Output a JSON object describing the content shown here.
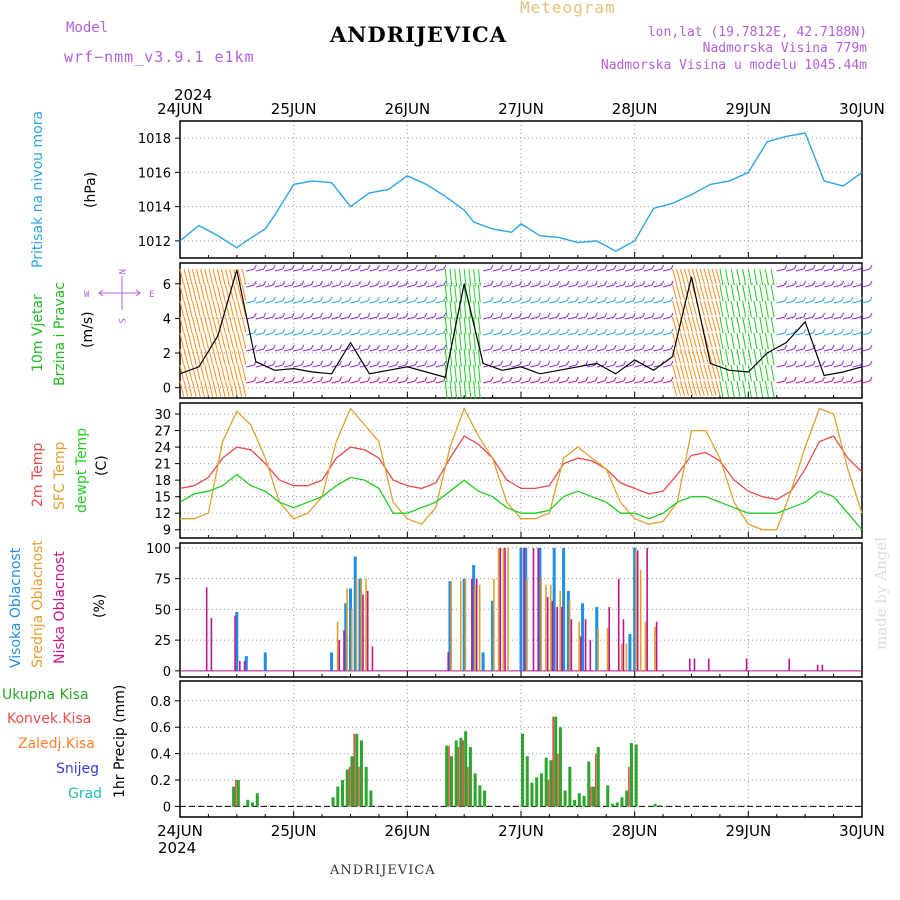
{
  "header": {
    "station": "ANDRIJEVICA",
    "product": "Meteogram",
    "model_label": "Model",
    "model_name": "wrf−nmm_v3.9.1  e1km",
    "lonlat": "lon,lat (19.7812E, 42.7188N)",
    "elevation": "Nadmorska Visina 779m",
    "elevation_model": "Nadmorska Visina u modelu 1045.44m"
  },
  "footer": {
    "station": "ANDRIJEVICA",
    "watermark": "made by Angel"
  },
  "time_axis": {
    "year": "2024",
    "labels": [
      "24JUN",
      "25JUN",
      "26JUN",
      "27JUN",
      "28JUN",
      "29JUN",
      "30JUN"
    ]
  },
  "colors": {
    "pressure": "#2aa5e6",
    "wind_label": "#22bb22",
    "temp2m": "#e84c4c",
    "sfc": "#e0a030",
    "dewpt": "#22cc22",
    "high_cloud": "#1e8fe6",
    "mid_cloud": "#e0a030",
    "low_cloud": "#c0158a",
    "total_precip": "#2aa72a",
    "conv_precip": "#e84c4c",
    "frozen_precip": "#ff7f2a",
    "snow": "#3a3ad8",
    "hail": "#22bbbb",
    "purple_text": "#b25fd8"
  },
  "panels": {
    "pressure": {
      "label": "Pritisak na nivou mora",
      "unit": "(hPa)"
    },
    "wind": {
      "label1": "10m Vjetar",
      "label2": "Brzina i Pravac",
      "unit": "(m/s)",
      "compass": {
        "n": "N",
        "w": "W",
        "e": "E",
        "s": "S"
      }
    },
    "temp": {
      "label_2m": "2m Temp",
      "label_sfc": "SFC Temp",
      "label_dewpt": "dewpt Temp",
      "unit": "(C)"
    },
    "cloud": {
      "label_high": "Visoka Oblacnost",
      "label_mid": "Srednja Oblacnost",
      "label_low": "Niska Oblacnost",
      "unit": "(%)"
    },
    "precip": {
      "unit": "1hr Precip (mm)",
      "legend": [
        "Ukupna Kisa",
        "Konvek.Kisa",
        "Zaledj.Kisa",
        "Snijeg",
        "Grad"
      ]
    }
  },
  "chart_data": [
    {
      "type": "line",
      "title": "",
      "ylabel": "Pritisak na nivou mora (hPa)",
      "ylim": [
        1011,
        1019
      ],
      "yticks": [
        1012,
        1014,
        1016,
        1018
      ],
      "x_unit": "hours since 24JUN 00",
      "series": [
        {
          "name": "Pritisak na nivou mora",
          "color_key": "pressure",
          "x": [
            0,
            4,
            8,
            12,
            14,
            18,
            20,
            24,
            28,
            32,
            36,
            40,
            44,
            48,
            52,
            56,
            60,
            62,
            66,
            70,
            72,
            76,
            80,
            84,
            88,
            92,
            96,
            100,
            104,
            108,
            112,
            116,
            120,
            124,
            128,
            132,
            136,
            140,
            144
          ],
          "y": [
            1012.0,
            1012.9,
            1012.3,
            1011.6,
            1012.0,
            1012.7,
            1013.5,
            1015.3,
            1015.5,
            1015.4,
            1014.0,
            1014.8,
            1015.0,
            1015.8,
            1015.3,
            1014.6,
            1013.8,
            1013.1,
            1012.7,
            1012.5,
            1013.0,
            1012.3,
            1012.2,
            1011.9,
            1012.0,
            1011.4,
            1012.0,
            1013.9,
            1014.2,
            1014.7,
            1015.3,
            1015.5,
            1016.0,
            1017.8,
            1018.1,
            1018.3,
            1015.5,
            1015.2,
            1016.0
          ]
        }
      ]
    },
    {
      "type": "line",
      "title": "",
      "ylabel": "10m Vjetar Brzina i Pravac (m/s)",
      "ylim": [
        -0.6,
        7.2
      ],
      "yticks": [
        0,
        2,
        4,
        6
      ],
      "x_unit": "hours since 24JUN 00",
      "series": [
        {
          "name": "Brzina",
          "x": [
            0,
            4,
            8,
            12,
            16,
            20,
            24,
            28,
            32,
            36,
            40,
            44,
            48,
            52,
            56,
            60,
            64,
            68,
            72,
            76,
            80,
            84,
            88,
            92,
            96,
            100,
            104,
            108,
            112,
            116,
            120,
            124,
            128,
            132,
            136,
            140,
            144
          ],
          "y": [
            0.8,
            1.2,
            3.0,
            6.8,
            1.5,
            1.0,
            1.1,
            0.9,
            0.8,
            2.6,
            0.8,
            1.0,
            1.2,
            0.9,
            0.6,
            6.0,
            1.4,
            1.0,
            1.2,
            0.8,
            1.0,
            1.2,
            1.4,
            0.8,
            1.6,
            1.0,
            1.8,
            6.4,
            1.4,
            1.0,
            0.9,
            2.0,
            2.6,
            3.8,
            0.7,
            0.9,
            1.2
          ]
        }
      ]
    },
    {
      "type": "line",
      "title": "",
      "ylabel": "Temp (C)",
      "ylim": [
        7.5,
        32
      ],
      "yticks": [
        9,
        12,
        15,
        18,
        21,
        24,
        27,
        30
      ],
      "x_unit": "hours since 24JUN 00",
      "series": [
        {
          "name": "2m Temp",
          "color_key": "temp2m",
          "x": [
            0,
            3,
            6,
            9,
            12,
            15,
            18,
            21,
            24,
            27,
            30,
            33,
            36,
            39,
            42,
            45,
            48,
            51,
            54,
            57,
            60,
            63,
            66,
            69,
            72,
            75,
            78,
            81,
            84,
            87,
            90,
            93,
            96,
            99,
            102,
            105,
            108,
            111,
            114,
            117,
            120,
            123,
            126,
            129,
            132,
            135,
            138,
            141,
            144
          ],
          "y": [
            16.5,
            17,
            18.5,
            22,
            24,
            23.5,
            21,
            18,
            17,
            17,
            18,
            22,
            24,
            23.5,
            22,
            18,
            17,
            16.5,
            17.5,
            22,
            26,
            24.5,
            22,
            18,
            16.5,
            16.5,
            17,
            21,
            22,
            21.5,
            20,
            17.5,
            16.5,
            15.5,
            16,
            19,
            22.5,
            23,
            21.5,
            18,
            16,
            15,
            14.5,
            16,
            20,
            25,
            26,
            22,
            19.5
          ]
        },
        {
          "name": "SFC Temp",
          "color_key": "sfc",
          "x": [
            0,
            3,
            6,
            9,
            12,
            15,
            18,
            21,
            24,
            27,
            30,
            33,
            36,
            39,
            42,
            45,
            48,
            51,
            54,
            57,
            60,
            63,
            66,
            69,
            72,
            75,
            78,
            81,
            84,
            87,
            90,
            93,
            96,
            99,
            102,
            105,
            108,
            111,
            114,
            117,
            120,
            123,
            126,
            129,
            132,
            135,
            138,
            141,
            144
          ],
          "y": [
            11,
            11,
            12,
            25,
            30.5,
            28,
            22,
            14,
            11,
            12,
            15,
            25,
            31,
            28,
            25,
            14,
            11,
            10,
            13,
            24,
            31,
            26,
            22,
            14,
            11,
            11,
            12,
            22,
            24,
            22,
            20,
            14,
            11,
            10,
            10.5,
            14,
            27,
            27,
            22,
            14,
            10,
            9,
            9,
            16,
            24,
            31,
            30,
            20,
            12
          ]
        },
        {
          "name": "dewpt Temp",
          "color_key": "dewpt",
          "x": [
            0,
            3,
            6,
            9,
            12,
            15,
            18,
            21,
            24,
            27,
            30,
            33,
            36,
            39,
            42,
            45,
            48,
            51,
            54,
            57,
            60,
            63,
            66,
            69,
            72,
            75,
            78,
            81,
            84,
            87,
            90,
            93,
            96,
            99,
            102,
            105,
            108,
            111,
            114,
            117,
            120,
            123,
            126,
            129,
            132,
            135,
            138,
            141,
            144
          ],
          "y": [
            14,
            15.5,
            16,
            17,
            19,
            17,
            16,
            14,
            13,
            14,
            15,
            17,
            18.5,
            18,
            16.5,
            12,
            12,
            13,
            14,
            16,
            18,
            16,
            15,
            13,
            12,
            12,
            12.5,
            15,
            16,
            15,
            14,
            12,
            12,
            11,
            12,
            14,
            15,
            15,
            14,
            13,
            12,
            12,
            12,
            13,
            14,
            16,
            15,
            12,
            9
          ]
        }
      ]
    },
    {
      "type": "bar",
      "title": "",
      "ylabel": "Oblacnost (%)",
      "ylim": [
        -5,
        104
      ],
      "yticks": [
        0,
        25,
        50,
        75,
        100
      ],
      "x_unit": "hours since 24JUN 00",
      "series": [
        {
          "name": "Visoka Oblacnost",
          "color_key": "high_cloud",
          "x": [
            12,
            14,
            18,
            32,
            35,
            36,
            37,
            38,
            57,
            60,
            62,
            64,
            66,
            72,
            73,
            76,
            79,
            81,
            82,
            85,
            88,
            95,
            96
          ],
          "y": [
            48,
            12,
            15,
            15,
            55,
            67,
            93,
            75,
            73,
            75,
            86,
            15,
            57,
            100,
            100,
            100,
            100,
            100,
            65,
            55,
            52,
            30,
            100
          ]
        },
        {
          "name": "Srednja Oblacnost",
          "color_key": "mid_cloud",
          "x": [
            33,
            35,
            36,
            37,
            38,
            39,
            57,
            59,
            60,
            62,
            63,
            66,
            67,
            68,
            69,
            73,
            76,
            77,
            78,
            80,
            82,
            84,
            88,
            90,
            93,
            94,
            96,
            97,
            98,
            100
          ],
          "y": [
            40,
            67,
            50,
            75,
            75,
            75,
            73,
            73,
            75,
            70,
            70,
            75,
            100,
            100,
            100,
            75,
            75,
            70,
            70,
            65,
            57,
            40,
            35,
            35,
            22,
            22,
            98,
            82,
            40,
            36
          ]
        },
        {
          "name": "Niska Oblacnost",
          "color_key": "low_cloud",
          "x": [
            5,
            6,
            11,
            12,
            13,
            33,
            34,
            38,
            39,
            40,
            56,
            61,
            62,
            67,
            68,
            72,
            74,
            75,
            77,
            78,
            79,
            80,
            82,
            84,
            85,
            86,
            90,
            92,
            93,
            96,
            98,
            100,
            107,
            108,
            111,
            119,
            128,
            134,
            135
          ],
          "y": [
            68,
            43,
            45,
            8,
            8,
            25,
            33,
            62,
            65,
            20,
            15,
            75,
            75,
            100,
            100,
            100,
            100,
            100,
            60,
            57,
            52,
            52,
            42,
            28,
            42,
            25,
            52,
            75,
            42,
            98,
            100,
            40,
            10,
            10,
            10,
            10,
            10,
            5,
            5
          ]
        }
      ]
    },
    {
      "type": "bar",
      "title": "",
      "ylabel": "1hr Precip (mm)",
      "ylim": [
        -0.08,
        0.95
      ],
      "yticks": [
        0,
        0.2,
        0.4,
        0.6,
        0.8
      ],
      "x_unit": "hours since 24JUN 00",
      "series": [
        {
          "name": "Ukupna Kisa",
          "color_key": "total_precip",
          "x": [
            11,
            12,
            14,
            15,
            16,
            32,
            33,
            34,
            35,
            36,
            37,
            38,
            39,
            40,
            56,
            57,
            58,
            59,
            60,
            61,
            62,
            63,
            64,
            72,
            73,
            74,
            75,
            76,
            77,
            78,
            79,
            80,
            81,
            82,
            83,
            84,
            85,
            86,
            87,
            88,
            90,
            91,
            92,
            93,
            94,
            95,
            96,
            100,
            101
          ],
          "y": [
            0.15,
            0.2,
            0.05,
            0.03,
            0.1,
            0.07,
            0.15,
            0.2,
            0.28,
            0.38,
            0.55,
            0.5,
            0.3,
            0.12,
            0.46,
            0.38,
            0.5,
            0.52,
            0.57,
            0.45,
            0.25,
            0.16,
            0.12,
            0.55,
            0.38,
            0.18,
            0.22,
            0.25,
            0.37,
            0.35,
            0.68,
            0.6,
            0.12,
            0.3,
            0.05,
            0.1,
            0.08,
            0.34,
            0.15,
            0.45,
            0.16,
            0.02,
            0.03,
            0.07,
            0.12,
            0.48,
            0.47,
            0.02,
            0.01
          ]
        },
        {
          "name": "Konvek.Kisa",
          "color_key": "conv_precip",
          "x": [
            12,
            36,
            37,
            38,
            57,
            59,
            60,
            61,
            78,
            79,
            80,
            87,
            88,
            95
          ],
          "y": [
            0.2,
            0.3,
            0.55,
            0.3,
            0.46,
            0.45,
            0.5,
            0.3,
            0.2,
            0.68,
            0.4,
            0.15,
            0.4,
            0.3
          ]
        }
      ]
    }
  ]
}
